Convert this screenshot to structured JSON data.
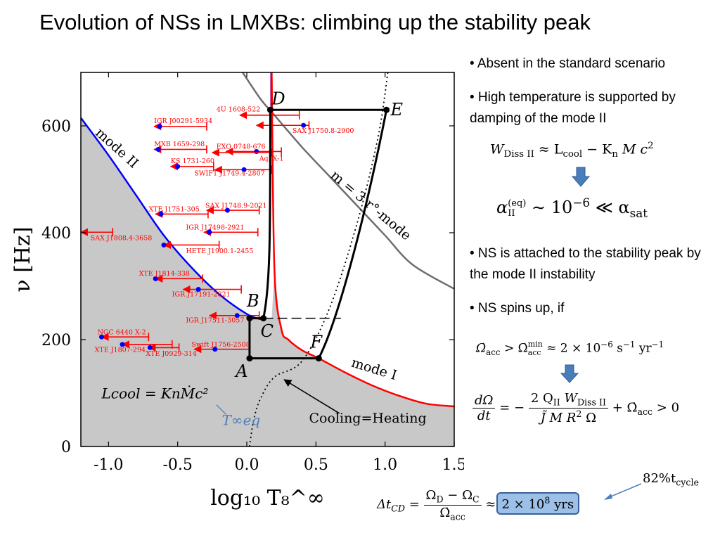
{
  "slide_title": "Evolution of NSs in LMXBs: climbing up the stability peak",
  "bullets": {
    "b1": "• Absent in the standard scenario",
    "b2": "• High temperature is supported by damping of the mode II",
    "b3": "• NS is attached to the stability peak by the mode II instability",
    "b4": "• NS spins up, if"
  },
  "equations": {
    "wdiss_lhs": "W",
    "wdiss_lhs_sub": "Diss II",
    "wdiss_rhs": "≈ L",
    "wdiss_rhs_sub": "cool",
    "wdiss_rest": "− K",
    "wdiss_n": "n",
    "wdiss_tail": "M c",
    "alpha_sym": "α",
    "alpha_sup": "(eq)",
    "alpha_sub": "II",
    "alpha_mid": "∼ 10",
    "alpha_exp": "−6",
    "alpha_tail": "≪ α",
    "alpha_tail_sub": "sat",
    "omega_acc_lhs": "Ω̇",
    "omega_acc_sub": "acc",
    "omega_acc_gt": "> Ω̇",
    "omega_acc_min": "min",
    "omega_acc_min_sub": "acc",
    "omega_acc_rhs": "≈ 2 × 10",
    "omega_acc_exp": "−6",
    "omega_acc_units": "s",
    "omega_acc_units_exp": "−1",
    "omega_acc_yr": "yr",
    "omega_acc_yr_exp": "−1",
    "dO_num": "dΩ",
    "dO_den": "dt",
    "dO_eq": "= −",
    "dO_frac_num": "2 Q",
    "dO_frac_num_sub": "II",
    "dO_frac_num_tail": "W",
    "dO_frac_num_tail_sub": "Diss II",
    "dO_frac_den": "J̃ M R",
    "dO_frac_den_sup": "2",
    "dO_frac_den_tail": "Ω",
    "dO_plus": "+ Ω̇",
    "dO_plus_sub": "acc",
    "dO_gt": "> 0",
    "tcycle": "82%t",
    "tcycle_sub": "cycle",
    "dtcd_lhs": "Δt",
    "dtcd_sub": "CD",
    "dtcd_eq": "=",
    "dtcd_num": "Ω",
    "dtcd_num_sub1": "D",
    "dtcd_num_mid": " − Ω",
    "dtcd_num_sub2": "C",
    "dtcd_den": "Ω̇",
    "dtcd_den_sub": "acc",
    "dtcd_approx": "≈",
    "dtcd_box": "2 × 10",
    "dtcd_box_exp": "8",
    "dtcd_box_unit": " yrs"
  },
  "colors": {
    "mode_I": "#ff0000",
    "mode_II": "#0000ff",
    "r_mode": "#6e6e6e",
    "shade": "#c8c8c8",
    "source": "#ff0000",
    "source_dot": "#0000ff",
    "evolution_track": "#000000",
    "arrow_blue": "#4a7ebb",
    "box_fill": "#9cc0e8"
  },
  "chart_data": {
    "type": "scatter",
    "xlabel": "log₁₀ T₈^∞",
    "ylabel": "ν [Hz]",
    "xlim": [
      -1.2,
      1.5
    ],
    "ylim": [
      0,
      700
    ],
    "xticks": [
      "-1.0",
      "-0.5",
      "0.0",
      "0.5",
      "1.0",
      "1.5"
    ],
    "xtick_values": [
      -1.0,
      -0.5,
      0.0,
      0.5,
      1.0,
      1.5
    ],
    "yticks": [
      "0",
      "200",
      "400",
      "600"
    ],
    "ytick_values": [
      0,
      200,
      400,
      600
    ],
    "grid": false,
    "curves": {
      "mode_II": {
        "label": "mode II",
        "x": [
          -1.2,
          -1.0,
          -0.8,
          -0.6,
          -0.4,
          -0.2,
          0.0,
          0.1
        ],
        "y": [
          615,
          545,
          470,
          395,
          335,
          285,
          248,
          238
        ]
      },
      "mode_I": {
        "label": "mode I",
        "x": [
          0.18,
          0.2,
          0.25,
          0.3,
          0.4,
          0.52,
          0.7,
          0.9,
          1.1,
          1.3,
          1.5
        ],
        "y": [
          700,
          330,
          220,
          200,
          180,
          165,
          140,
          115,
          95,
          80,
          75
        ]
      },
      "r_mode_3": {
        "label": "m = 3 r°-mode",
        "x": [
          -0.03,
          0.1,
          0.2,
          0.4,
          0.6,
          0.8,
          1.0,
          1.2,
          1.5
        ],
        "y": [
          700,
          650,
          620,
          560,
          505,
          450,
          395,
          340,
          295
        ]
      },
      "cooling_heating": {
        "label": "Cooling=Heating",
        "x": [
          0.02,
          0.05,
          0.1,
          0.2,
          0.4,
          0.6,
          0.8,
          0.95,
          1.02
        ],
        "y": [
          0,
          50,
          90,
          130,
          160,
          260,
          420,
          580,
          700
        ]
      }
    },
    "track_points": {
      "A": {
        "x": 0.02,
        "y": 165
      },
      "B": {
        "x": 0.02,
        "y": 240
      },
      "C": {
        "x": 0.12,
        "y": 240
      },
      "D": {
        "x": 0.17,
        "y": 630
      },
      "E": {
        "x": 1.01,
        "y": 630
      },
      "F": {
        "x": 0.52,
        "y": 165
      }
    },
    "sources": [
      {
        "name": "4U 1608-522",
        "dot": null,
        "x_lo": -0.05,
        "x_hi": 0.38,
        "y": 620
      },
      {
        "name": "IGR J00291-5934",
        "dot": -0.63,
        "x_lo": -0.67,
        "x_hi": -0.29,
        "y": 599
      },
      {
        "name": "SAX J1750.8-2900",
        "dot": 0.41,
        "x_lo": 0.07,
        "x_hi": 0.45,
        "y": 601
      },
      {
        "name": "MXB 1659-298",
        "dot": -0.64,
        "x_lo": -0.67,
        "x_hi": -0.29,
        "y": 556
      },
      {
        "name": "EXO 0748-676",
        "dot": 0.07,
        "x_lo": -0.15,
        "x_hi": 0.25,
        "y": 552
      },
      {
        "name": "KS 1731-260",
        "dot": -0.5,
        "x_lo": -0.55,
        "x_hi": -0.24,
        "y": 524
      },
      {
        "name": "Aql X-1",
        "dot": null,
        "x_lo": -0.25,
        "x_hi": 0.18,
        "y": 550
      },
      {
        "name": "SWIFT J1749.4-2807",
        "dot": -0.02,
        "x_lo": -0.23,
        "x_hi": 0.18,
        "y": 518
      },
      {
        "name": "XTE J1751-305",
        "dot": -0.62,
        "x_lo": -0.66,
        "x_hi": -0.28,
        "y": 435
      },
      {
        "name": "SAX J1748.9-2021",
        "dot": -0.14,
        "x_lo": -0.29,
        "x_hi": 0.09,
        "y": 442
      },
      {
        "name": "IGR J17498-2921",
        "dot": -0.27,
        "x_lo": -0.31,
        "x_hi": 0.08,
        "y": 401
      },
      {
        "name": "SAX J1808.4-3658",
        "dot": null,
        "x_lo": -1.2,
        "x_hi": -0.97,
        "y": 401
      },
      {
        "name": "HETE J1900.1-2455",
        "dot": -0.6,
        "x_lo": -0.6,
        "x_hi": -0.2,
        "y": 377
      },
      {
        "name": "XTE J1814-338",
        "dot": -0.66,
        "x_lo": -0.66,
        "x_hi": -0.32,
        "y": 314
      },
      {
        "name": "IGR J17191-2821",
        "dot": -0.35,
        "x_lo": -0.46,
        "x_hi": -0.04,
        "y": 294
      },
      {
        "name": "IGR J17511-3057",
        "dot": -0.07,
        "x_lo": -0.27,
        "x_hi": 0.09,
        "y": 245
      },
      {
        "name": "NGC 6440 X-2",
        "dot": -1.05,
        "x_lo": -1.05,
        "x_hi": -0.71,
        "y": 205
      },
      {
        "name": "XTE J1807-294",
        "dot": -0.9,
        "x_lo": -0.9,
        "x_hi": -0.54,
        "y": 191
      },
      {
        "name": "Swift J1756-2508",
        "dot": -0.23,
        "x_lo": -0.38,
        "x_hi": 0.02,
        "y": 182
      },
      {
        "name": "XTE J0929-314",
        "dot": -0.7,
        "x_lo": -0.71,
        "x_hi": -0.49,
        "y": 185
      }
    ],
    "labels": {
      "mode_II": "mode II",
      "mode_I": "mode I",
      "r_mode": "m = 3 r°-mode",
      "cooling": "Cooling=Heating",
      "lcool_eq": "Lcool = KnṀc²",
      "teq": "T∞eq"
    }
  }
}
